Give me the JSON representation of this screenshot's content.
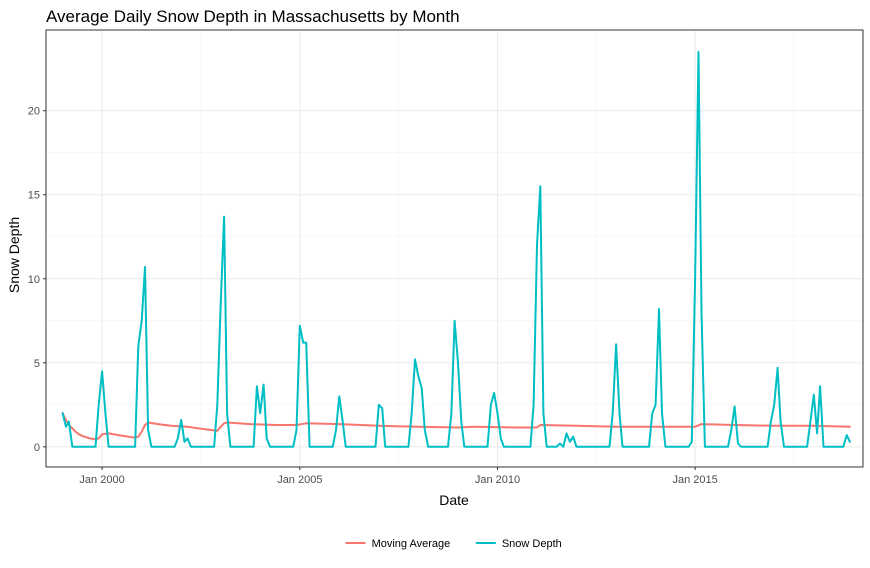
{
  "chart_data": {
    "type": "line",
    "title": "Average Daily Snow Depth in Massachusetts by Month",
    "xlabel": "Date",
    "ylabel": "Snow Depth",
    "xlim": [
      "1998-08-01",
      "2019-04-01"
    ],
    "ylim": [
      -1.2,
      24.8
    ],
    "x_ticks": [
      {
        "date": "2000-01-01",
        "label": "Jan 2000"
      },
      {
        "date": "2005-01-01",
        "label": "Jan 2005"
      },
      {
        "date": "2010-01-01",
        "label": "Jan 2010"
      },
      {
        "date": "2015-01-01",
        "label": "Jan 2015"
      }
    ],
    "y_ticks": [
      0,
      5,
      10,
      15,
      20
    ],
    "grid": true,
    "legend_position": "bottom",
    "series": [
      {
        "name": "Moving Average",
        "color": "#f8766d",
        "points": [
          [
            "1999-01-01",
            2.0
          ],
          [
            "1999-02-01",
            1.6
          ],
          [
            "1999-03-01",
            1.3
          ],
          [
            "1999-04-01",
            1.1
          ],
          [
            "1999-05-01",
            0.9
          ],
          [
            "1999-06-01",
            0.75
          ],
          [
            "1999-07-01",
            0.65
          ],
          [
            "1999-08-01",
            0.58
          ],
          [
            "1999-09-01",
            0.52
          ],
          [
            "1999-10-01",
            0.48
          ],
          [
            "1999-11-01",
            0.45
          ],
          [
            "1999-12-01",
            0.5
          ],
          [
            "2000-01-01",
            0.75
          ],
          [
            "2000-03-01",
            0.8
          ],
          [
            "2000-06-01",
            0.7
          ],
          [
            "2000-09-01",
            0.6
          ],
          [
            "2000-11-01",
            0.55
          ],
          [
            "2000-12-01",
            0.6
          ],
          [
            "2001-01-01",
            0.9
          ],
          [
            "2001-02-01",
            1.3
          ],
          [
            "2001-03-01",
            1.45
          ],
          [
            "2001-06-01",
            1.35
          ],
          [
            "2001-10-01",
            1.25
          ],
          [
            "2002-03-01",
            1.2
          ],
          [
            "2002-06-01",
            1.1
          ],
          [
            "2002-10-01",
            1.0
          ],
          [
            "2002-12-01",
            0.95
          ],
          [
            "2003-01-01",
            1.2
          ],
          [
            "2003-02-01",
            1.4
          ],
          [
            "2003-03-01",
            1.45
          ],
          [
            "2003-10-01",
            1.35
          ],
          [
            "2004-06-01",
            1.3
          ],
          [
            "2004-12-01",
            1.3
          ],
          [
            "2005-03-01",
            1.4
          ],
          [
            "2006-01-01",
            1.35
          ],
          [
            "2007-01-01",
            1.25
          ],
          [
            "2008-01-01",
            1.2
          ],
          [
            "2009-01-01",
            1.15
          ],
          [
            "2009-06-01",
            1.2
          ],
          [
            "2010-06-01",
            1.15
          ],
          [
            "2011-01-01",
            1.15
          ],
          [
            "2011-02-01",
            1.3
          ],
          [
            "2012-01-01",
            1.25
          ],
          [
            "2013-01-01",
            1.2
          ],
          [
            "2014-01-01",
            1.2
          ],
          [
            "2015-01-01",
            1.2
          ],
          [
            "2015-03-01",
            1.35
          ],
          [
            "2016-01-01",
            1.3
          ],
          [
            "2017-01-01",
            1.25
          ],
          [
            "2018-01-01",
            1.25
          ],
          [
            "2018-12-01",
            1.2
          ]
        ]
      },
      {
        "name": "Snow Depth",
        "color": "#00bfc4",
        "points": [
          [
            "1999-01-01",
            2.0
          ],
          [
            "1999-02-01",
            1.2
          ],
          [
            "1999-03-01",
            1.5
          ],
          [
            "1999-04-01",
            0.0
          ],
          [
            "1999-11-01",
            0.0
          ],
          [
            "1999-12-01",
            2.5
          ],
          [
            "2000-01-01",
            4.5
          ],
          [
            "2000-02-01",
            2.0
          ],
          [
            "2000-03-01",
            0.0
          ],
          [
            "2000-11-01",
            0.0
          ],
          [
            "2000-12-01",
            6.0
          ],
          [
            "2001-01-01",
            7.5
          ],
          [
            "2001-02-01",
            10.7
          ],
          [
            "2001-03-01",
            1.0
          ],
          [
            "2001-04-01",
            0.0
          ],
          [
            "2001-11-01",
            0.0
          ],
          [
            "2001-12-01",
            0.5
          ],
          [
            "2002-01-01",
            1.6
          ],
          [
            "2002-02-01",
            0.3
          ],
          [
            "2002-03-01",
            0.5
          ],
          [
            "2002-04-01",
            0.0
          ],
          [
            "2002-11-01",
            0.0
          ],
          [
            "2002-12-01",
            2.5
          ],
          [
            "2003-01-01",
            8.5
          ],
          [
            "2003-02-01",
            13.7
          ],
          [
            "2003-03-01",
            2.0
          ],
          [
            "2003-04-01",
            0.0
          ],
          [
            "2003-11-01",
            0.0
          ],
          [
            "2003-12-01",
            3.6
          ],
          [
            "2004-01-01",
            2.0
          ],
          [
            "2004-02-01",
            3.7
          ],
          [
            "2004-03-01",
            0.5
          ],
          [
            "2004-04-01",
            0.0
          ],
          [
            "2004-11-01",
            0.0
          ],
          [
            "2004-12-01",
            1.0
          ],
          [
            "2005-01-01",
            7.2
          ],
          [
            "2005-02-01",
            6.2
          ],
          [
            "2005-03-01",
            6.2
          ],
          [
            "2005-04-01",
            0.0
          ],
          [
            "2005-11-01",
            0.0
          ],
          [
            "2005-12-01",
            1.0
          ],
          [
            "2006-01-01",
            3.0
          ],
          [
            "2006-02-01",
            1.5
          ],
          [
            "2006-03-01",
            0.0
          ],
          [
            "2006-12-01",
            0.0
          ],
          [
            "2007-01-01",
            2.5
          ],
          [
            "2007-02-01",
            2.3
          ],
          [
            "2007-03-01",
            0.0
          ],
          [
            "2007-10-01",
            0.0
          ],
          [
            "2007-11-01",
            2.0
          ],
          [
            "2007-12-01",
            5.2
          ],
          [
            "2008-01-01",
            4.2
          ],
          [
            "2008-02-01",
            3.5
          ],
          [
            "2008-03-01",
            1.0
          ],
          [
            "2008-04-01",
            0.0
          ],
          [
            "2008-10-01",
            0.0
          ],
          [
            "2008-11-01",
            2.0
          ],
          [
            "2008-12-01",
            7.5
          ],
          [
            "2009-01-01",
            5.0
          ],
          [
            "2009-02-01",
            1.5
          ],
          [
            "2009-03-01",
            0.0
          ],
          [
            "2009-10-01",
            0.0
          ],
          [
            "2009-11-01",
            2.5
          ],
          [
            "2009-12-01",
            3.2
          ],
          [
            "2010-01-01",
            2.0
          ],
          [
            "2010-02-01",
            0.5
          ],
          [
            "2010-03-01",
            0.0
          ],
          [
            "2010-11-01",
            0.0
          ],
          [
            "2010-12-01",
            2.5
          ],
          [
            "2011-01-01",
            12.0
          ],
          [
            "2011-02-01",
            15.5
          ],
          [
            "2011-03-01",
            2.0
          ],
          [
            "2011-04-01",
            0.0
          ],
          [
            "2011-07-01",
            0.0
          ],
          [
            "2011-08-01",
            0.2
          ],
          [
            "2011-09-01",
            0.0
          ],
          [
            "2011-10-01",
            0.8
          ],
          [
            "2011-11-01",
            0.3
          ],
          [
            "2011-12-01",
            0.6
          ],
          [
            "2012-01-01",
            0.0
          ],
          [
            "2012-11-01",
            0.0
          ],
          [
            "2012-12-01",
            2.0
          ],
          [
            "2013-01-01",
            6.1
          ],
          [
            "2013-02-01",
            2.0
          ],
          [
            "2013-03-01",
            0.0
          ],
          [
            "2013-11-01",
            0.0
          ],
          [
            "2013-12-01",
            2.0
          ],
          [
            "2014-01-01",
            2.5
          ],
          [
            "2014-02-01",
            8.2
          ],
          [
            "2014-03-01",
            2.0
          ],
          [
            "2014-04-01",
            0.0
          ],
          [
            "2014-11-01",
            0.0
          ],
          [
            "2014-12-01",
            0.3
          ],
          [
            "2015-01-01",
            10.0
          ],
          [
            "2015-02-01",
            23.5
          ],
          [
            "2015-03-01",
            8.0
          ],
          [
            "2015-04-01",
            0.0
          ],
          [
            "2015-11-01",
            0.0
          ],
          [
            "2015-12-01",
            1.0
          ],
          [
            "2016-01-01",
            2.4
          ],
          [
            "2016-02-01",
            0.2
          ],
          [
            "2016-03-01",
            0.0
          ],
          [
            "2016-11-01",
            0.0
          ],
          [
            "2016-12-01",
            1.5
          ],
          [
            "2017-01-01",
            2.5
          ],
          [
            "2017-02-01",
            4.7
          ],
          [
            "2017-03-01",
            1.5
          ],
          [
            "2017-04-01",
            0.0
          ],
          [
            "2017-11-01",
            0.0
          ],
          [
            "2017-12-01",
            1.5
          ],
          [
            "2018-01-01",
            3.1
          ],
          [
            "2018-02-01",
            0.8
          ],
          [
            "2018-03-01",
            3.6
          ],
          [
            "2018-04-01",
            0.0
          ],
          [
            "2018-10-01",
            0.0
          ],
          [
            "2018-11-01",
            0.7
          ],
          [
            "2018-12-01",
            0.3
          ]
        ]
      }
    ]
  }
}
